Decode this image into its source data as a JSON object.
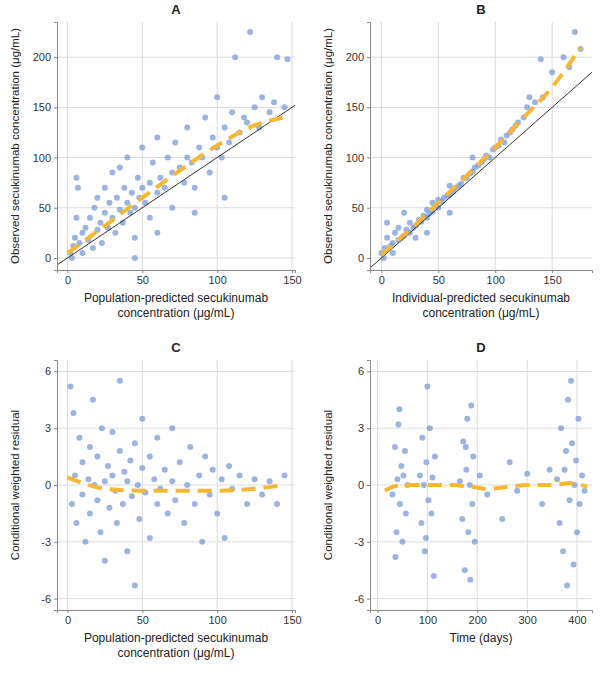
{
  "chart_data": [
    {
      "type": "scatter",
      "title": "A",
      "xlabel": [
        "Population-predicted secukinumab",
        "concentration (μg/mL)"
      ],
      "ylabel": "Observed secukinumab concentration (μg/mL)",
      "xlim": [
        -7,
        152
      ],
      "ylim": [
        -12,
        235
      ],
      "xticks": [
        0,
        50,
        100,
        150
      ],
      "yticks": [
        0,
        50,
        100,
        150,
        200
      ],
      "grid": true,
      "series": [
        {
          "type": "scatter",
          "marker": "circle",
          "color": "#7b9bd6",
          "x": [
            2,
            3,
            4,
            5,
            6,
            6,
            7,
            8,
            10,
            10,
            12,
            14,
            15,
            17,
            18,
            20,
            20,
            22,
            23,
            25,
            25,
            27,
            28,
            30,
            30,
            32,
            33,
            35,
            35,
            37,
            38,
            40,
            40,
            42,
            43,
            45,
            45,
            47,
            48,
            50,
            50,
            52,
            55,
            55,
            57,
            60,
            60,
            62,
            65,
            67,
            70,
            70,
            72,
            75,
            78,
            80,
            80,
            83,
            85,
            88,
            90,
            92,
            95,
            97,
            100,
            100,
            103,
            105,
            108,
            110,
            112,
            115,
            118,
            120,
            122,
            125,
            128,
            130,
            135,
            138,
            140,
            145,
            147,
            105,
            85,
            45,
            60
          ],
          "values": [
            5,
            0,
            12,
            20,
            40,
            80,
            70,
            15,
            25,
            5,
            30,
            18,
            40,
            10,
            50,
            28,
            60,
            35,
            15,
            45,
            70,
            30,
            55,
            40,
            85,
            25,
            60,
            48,
            90,
            35,
            70,
            55,
            100,
            45,
            65,
            50,
            20,
            80,
            60,
            70,
            110,
            55,
            75,
            40,
            95,
            65,
            120,
            80,
            70,
            100,
            85,
            50,
            115,
            90,
            75,
            100,
            130,
            95,
            70,
            110,
            100,
            140,
            85,
            120,
            110,
            160,
            100,
            130,
            115,
            145,
            200,
            125,
            140,
            135,
            225,
            150,
            130,
            160,
            145,
            155,
            200,
            150,
            198,
            60,
            45,
            0,
            25
          ]
        },
        {
          "type": "line",
          "line_style": "solid",
          "color": "#333333",
          "x": [
            -7,
            152
          ],
          "values": [
            -7,
            152
          ]
        },
        {
          "type": "line",
          "line_style": "dashed",
          "color": "#f7b733",
          "x": [
            0,
            25,
            50,
            75,
            100,
            125,
            145
          ],
          "values": [
            5,
            32,
            60,
            87,
            112,
            132,
            140
          ]
        }
      ]
    },
    {
      "type": "scatter",
      "title": "B",
      "xlabel": [
        "Individual-predicted secukinumab",
        "concentration (μg/mL)"
      ],
      "ylabel": "Observed secukinumab concentration (μg/mL)",
      "xlim": [
        -10,
        185
      ],
      "ylim": [
        -12,
        235
      ],
      "xticks": [
        0,
        50,
        100,
        150
      ],
      "yticks": [
        0,
        50,
        100,
        150,
        200
      ],
      "grid": true,
      "series": [
        {
          "type": "scatter",
          "marker": "circle",
          "color": "#7b9bd6",
          "x": [
            0,
            2,
            3,
            5,
            5,
            8,
            10,
            10,
            12,
            15,
            15,
            18,
            20,
            22,
            25,
            25,
            28,
            30,
            30,
            33,
            35,
            37,
            40,
            40,
            42,
            45,
            45,
            48,
            50,
            50,
            53,
            55,
            58,
            60,
            60,
            63,
            65,
            68,
            70,
            72,
            75,
            78,
            80,
            82,
            85,
            88,
            90,
            92,
            95,
            98,
            100,
            103,
            105,
            108,
            110,
            113,
            115,
            118,
            120,
            125,
            128,
            130,
            135,
            140,
            142,
            150,
            160,
            165,
            170,
            175,
            20,
            40,
            60,
            80
          ],
          "values": [
            5,
            0,
            10,
            20,
            35,
            12,
            5,
            15,
            25,
            18,
            30,
            20,
            22,
            28,
            25,
            35,
            30,
            32,
            20,
            38,
            36,
            42,
            40,
            48,
            44,
            46,
            55,
            52,
            50,
            58,
            56,
            60,
            62,
            63,
            72,
            66,
            70,
            72,
            74,
            80,
            80,
            84,
            86,
            90,
            92,
            95,
            98,
            102,
            100,
            108,
            110,
            112,
            118,
            115,
            122,
            125,
            128,
            132,
            135,
            140,
            150,
            160,
            155,
            198,
            160,
            185,
            200,
            190,
            225,
            208,
            45,
            25,
            45,
            100
          ]
        },
        {
          "type": "line",
          "line_style": "solid",
          "color": "#333333",
          "x": [
            -10,
            185
          ],
          "values": [
            -10,
            185
          ]
        },
        {
          "type": "line",
          "line_style": "dashed",
          "color": "#f7b733",
          "x": [
            0,
            25,
            50,
            75,
            100,
            125,
            150,
            175
          ],
          "values": [
            3,
            28,
            55,
            82,
            110,
            140,
            170,
            210
          ]
        }
      ]
    },
    {
      "type": "scatter",
      "title": "C",
      "xlabel": [
        "Population-predicted secukinumab",
        "concentration (μg/mL)"
      ],
      "ylabel": "Conditional weighted residual",
      "xlim": [
        -7,
        152
      ],
      "ylim": [
        -6.6,
        6.6
      ],
      "xticks": [
        0,
        50,
        100,
        150
      ],
      "yticks": [
        -6,
        -3,
        0,
        3,
        6
      ],
      "grid": true,
      "series": [
        {
          "type": "scatter",
          "marker": "circle",
          "color": "#7b9bd6",
          "x": [
            2,
            3,
            4,
            5,
            6,
            8,
            10,
            10,
            12,
            14,
            15,
            15,
            17,
            18,
            20,
            20,
            22,
            23,
            25,
            25,
            27,
            28,
            30,
            30,
            32,
            33,
            35,
            35,
            37,
            38,
            40,
            40,
            42,
            43,
            45,
            45,
            47,
            48,
            50,
            50,
            52,
            55,
            55,
            58,
            60,
            60,
            62,
            65,
            67,
            70,
            70,
            72,
            75,
            78,
            80,
            82,
            85,
            88,
            90,
            92,
            95,
            97,
            100,
            103,
            105,
            108,
            110,
            115,
            120,
            125,
            130,
            135,
            140,
            145
          ],
          "values": [
            5.2,
            -1,
            3.8,
            0.5,
            -2,
            2.5,
            -0.5,
            1.2,
            -3,
            0.3,
            2,
            -1.5,
            4.5,
            0,
            -0.8,
            1.5,
            -2.5,
            3,
            0.2,
            -4,
            1,
            -1.2,
            0.5,
            2.8,
            -0.3,
            -2,
            1.8,
            5.5,
            -1,
            0.7,
            -3.5,
            0.2,
            1.3,
            -0.6,
            2.2,
            -5.3,
            0,
            -1.8,
            0.9,
            3.5,
            -0.4,
            1.5,
            -2.8,
            0.3,
            -1,
            2.5,
            -0.2,
            0.8,
            -1.5,
            0.2,
            3,
            -0.8,
            1.2,
            -2,
            0,
            2,
            -1,
            0.5,
            -3,
            1.5,
            -0.5,
            0.8,
            -1.5,
            0.3,
            -2.8,
            1,
            -0.2,
            0.5,
            -1,
            0.3,
            -0.5,
            0.2,
            -1,
            0.5
          ]
        },
        {
          "type": "line",
          "line_style": "dashed",
          "color": "#f7b733",
          "x": [
            0,
            10,
            25,
            50,
            75,
            100,
            125,
            145
          ],
          "values": [
            0.4,
            0.1,
            -0.2,
            -0.3,
            -0.3,
            -0.3,
            -0.2,
            0
          ]
        }
      ]
    },
    {
      "type": "scatter",
      "title": "D",
      "xlabel": [
        "Time (days)"
      ],
      "ylabel": "Conditional weighted residual",
      "xlim": [
        -15,
        430
      ],
      "ylim": [
        -6.6,
        6.6
      ],
      "xticks": [
        0,
        100,
        200,
        300,
        400
      ],
      "yticks": [
        -6,
        -3,
        0,
        3,
        6
      ],
      "grid": true,
      "series": [
        {
          "type": "scatter",
          "marker": "circle",
          "color": "#7b9bd6",
          "x": [
            30,
            35,
            38,
            40,
            42,
            45,
            48,
            50,
            52,
            55,
            57,
            60,
            44,
            36,
            85,
            88,
            90,
            93,
            95,
            98,
            100,
            102,
            105,
            108,
            110,
            113,
            115,
            97,
            165,
            170,
            172,
            175,
            178,
            180,
            182,
            185,
            188,
            190,
            192,
            195,
            186,
            177,
            205,
            220,
            250,
            265,
            280,
            300,
            330,
            345,
            360,
            365,
            368,
            372,
            375,
            378,
            380,
            382,
            385,
            388,
            390,
            393,
            395,
            398,
            400,
            403,
            405,
            410,
            415
          ],
          "values": [
            -0.5,
            2,
            -2.5,
            0.3,
            3.2,
            -1,
            1,
            -3,
            0.5,
            1.8,
            -1.5,
            0,
            4,
            -3.8,
            0.5,
            -2,
            2.5,
            0,
            -3.5,
            1.2,
            5.2,
            -0.8,
            3,
            -1.5,
            0.4,
            -4.8,
            1.5,
            -2.8,
            0.2,
            -1.8,
            2.3,
            -4.5,
            0.8,
            3.5,
            -2.5,
            0,
            4.2,
            -1,
            1.5,
            -3,
            -5,
            2,
            0.5,
            -0.5,
            -1.8,
            1.2,
            -0.3,
            0.6,
            -1,
            0.8,
            0.3,
            -2,
            3,
            -3.5,
            0.8,
            1.8,
            -5.3,
            4.5,
            -0.8,
            5.5,
            2.2,
            -4.2,
            0,
            1.3,
            -2.5,
            3.5,
            -1,
            0.5,
            -0.3
          ]
        },
        {
          "type": "line",
          "line_style": "dashed",
          "color": "#f7b733",
          "x": [
            15,
            30,
            50,
            80,
            110,
            140,
            190,
            220,
            260,
            300,
            350,
            390,
            420
          ],
          "values": [
            -0.3,
            -0.1,
            0,
            0,
            0,
            0,
            -0.1,
            -0.2,
            -0.1,
            0,
            0,
            0.1,
            -0.1
          ]
        }
      ]
    }
  ]
}
